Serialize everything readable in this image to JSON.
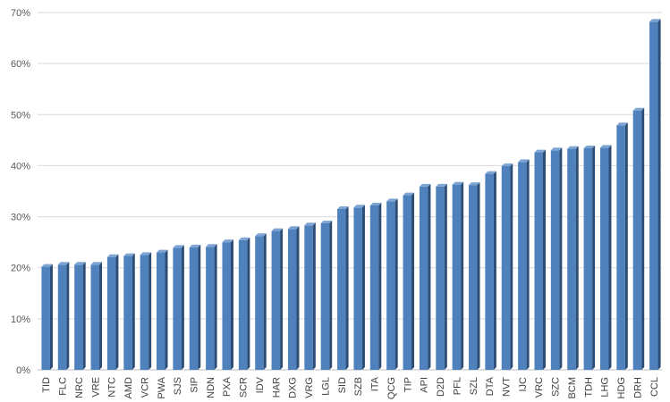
{
  "chart_data": {
    "type": "bar",
    "title": "",
    "xlabel": "",
    "ylabel": "",
    "ylim": [
      0,
      70
    ],
    "yticks": [
      "0%",
      "10%",
      "20%",
      "30%",
      "40%",
      "50%",
      "60%",
      "70%"
    ],
    "grid": true,
    "categories": [
      "TID",
      "FLC",
      "NRC",
      "VRE",
      "NTC",
      "AMD",
      "VCR",
      "PWA",
      "SJS",
      "SIP",
      "NDN",
      "PXA",
      "SCR",
      "IDV",
      "HAR",
      "DXG",
      "VRG",
      "LGL",
      "SID",
      "SZB",
      "ITA",
      "QCG",
      "TIP",
      "API",
      "D2D",
      "PFL",
      "SZL",
      "DTA",
      "NVT",
      "IJC",
      "VRC",
      "SZC",
      "BCM",
      "TDH",
      "LHG",
      "HDG",
      "DRH",
      "CCL"
    ],
    "values": [
      20.2,
      20.6,
      20.6,
      20.6,
      22.1,
      22.3,
      22.5,
      23.0,
      23.9,
      24.0,
      24.1,
      25.0,
      25.4,
      26.2,
      27.2,
      27.6,
      28.3,
      28.7,
      31.5,
      31.8,
      32.2,
      33.0,
      34.2,
      35.9,
      35.9,
      36.3,
      36.2,
      38.4,
      39.9,
      40.7,
      42.6,
      43.0,
      43.3,
      43.4,
      43.5,
      47.9,
      50.8,
      68.2
    ],
    "bar_color": "#4f81bd",
    "bar_side_color": "#2c4d75",
    "bar_top_color": "#7ea4d3"
  }
}
